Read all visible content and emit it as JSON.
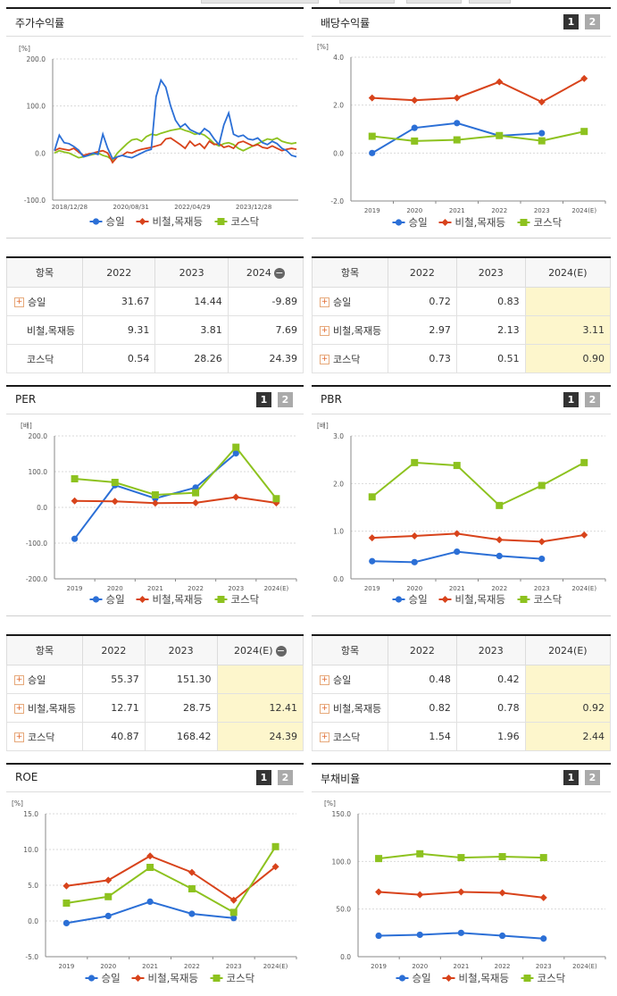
{
  "colors": {
    "s1": "#2b6fd6",
    "s2": "#d8431b",
    "s3": "#8dc21f"
  },
  "panels": {
    "stock": {
      "title": "주가수익률",
      "unit": "[%]"
    },
    "dividend": {
      "title": "배당수익률",
      "unit": "[%]",
      "btn1": "1",
      "btn2": "2"
    },
    "per": {
      "title": "PER",
      "unit": "[배]",
      "btn1": "1",
      "btn2": "2"
    },
    "pbr": {
      "title": "PBR",
      "unit": "[배]",
      "btn1": "1",
      "btn2": "2"
    },
    "roe": {
      "title": "ROE",
      "unit": "[%]",
      "btn1": "1",
      "btn2": "2"
    },
    "debt": {
      "title": "부채비율",
      "unit": "[%]",
      "btn1": "1",
      "btn2": "2"
    }
  },
  "legend": [
    "승일",
    "비철,목재등",
    "코스닥"
  ],
  "chart_data": [
    {
      "id": "stock",
      "type": "line",
      "ylim": [
        -100,
        200
      ],
      "yticks": [
        "200.0",
        "100.0",
        "0.0",
        "-100.0"
      ],
      "xticks": [
        "2018/12/28",
        "2020/08/31",
        "2022/04/29",
        "2023/12/28"
      ],
      "series": [
        {
          "name": "승일",
          "values": [
            5,
            38,
            22,
            20,
            14,
            6,
            -8,
            -5,
            0,
            -3,
            40,
            10,
            -12,
            -8,
            -5,
            -8,
            -10,
            -5,
            0,
            5,
            8,
            120,
            155,
            140,
            100,
            70,
            55,
            62,
            50,
            45,
            40,
            52,
            45,
            30,
            18,
            60,
            85,
            40,
            35,
            38,
            30,
            28,
            32,
            22,
            18,
            25,
            20,
            10,
            5,
            -5,
            -8
          ]
        },
        {
          "name": "비철,목재등",
          "values": [
            5,
            10,
            8,
            6,
            10,
            2,
            -5,
            -2,
            0,
            3,
            5,
            0,
            -20,
            -8,
            -5,
            2,
            0,
            5,
            8,
            10,
            12,
            15,
            18,
            30,
            32,
            25,
            18,
            10,
            25,
            15,
            20,
            10,
            25,
            18,
            20,
            12,
            15,
            10,
            22,
            25,
            20,
            15,
            18,
            12,
            10,
            15,
            10,
            5,
            8,
            10,
            8
          ]
        },
        {
          "name": "코스닥",
          "values": [
            0,
            5,
            2,
            0,
            -5,
            -10,
            -8,
            -5,
            -3,
            0,
            -5,
            -8,
            -15,
            0,
            10,
            20,
            28,
            30,
            25,
            35,
            40,
            38,
            42,
            45,
            48,
            50,
            52,
            48,
            45,
            40,
            42,
            38,
            30,
            20,
            15,
            20,
            22,
            18,
            10,
            5,
            10,
            15,
            20,
            25,
            30,
            28,
            32,
            25,
            22,
            20,
            22
          ]
        }
      ]
    },
    {
      "id": "dividend",
      "type": "line",
      "ylim": [
        -2,
        4
      ],
      "yticks": [
        "4.0",
        "2.0",
        "0.0",
        "-2.0"
      ],
      "categories": [
        "2019",
        "2020",
        "2021",
        "2022",
        "2023",
        "2024(E)"
      ],
      "series": [
        {
          "name": "승일",
          "values": [
            0.0,
            1.05,
            1.25,
            0.72,
            0.83,
            null
          ]
        },
        {
          "name": "비철,목재등",
          "values": [
            2.3,
            2.2,
            2.3,
            2.97,
            2.13,
            3.11
          ]
        },
        {
          "name": "코스닥",
          "values": [
            0.7,
            0.5,
            0.55,
            0.73,
            0.51,
            0.9
          ]
        }
      ]
    },
    {
      "id": "per",
      "type": "line",
      "ylim": [
        -200,
        200
      ],
      "yticks": [
        "200.0",
        "100.0",
        "0.0",
        "-100.0",
        "-200.0"
      ],
      "categories": [
        "2019",
        "2020",
        "2021",
        "2022",
        "2023",
        "2024(E)"
      ],
      "series": [
        {
          "name": "승일",
          "values": [
            -88,
            62,
            25,
            55.37,
            151.3,
            null
          ]
        },
        {
          "name": "비철,목재등",
          "values": [
            18,
            17,
            12,
            12.71,
            28.75,
            12.41
          ]
        },
        {
          "name": "코스닥",
          "values": [
            80,
            70,
            35,
            40.87,
            168.42,
            24.39
          ]
        }
      ]
    },
    {
      "id": "pbr",
      "type": "line",
      "ylim": [
        0,
        3
      ],
      "yticks": [
        "3.0",
        "2.0",
        "1.0",
        "0.0"
      ],
      "categories": [
        "2019",
        "2020",
        "2021",
        "2022",
        "2023",
        "2024(E)"
      ],
      "series": [
        {
          "name": "승일",
          "values": [
            0.37,
            0.35,
            0.57,
            0.48,
            0.42,
            null
          ]
        },
        {
          "name": "비철,목재등",
          "values": [
            0.86,
            0.9,
            0.95,
            0.82,
            0.78,
            0.92
          ]
        },
        {
          "name": "코스닥",
          "values": [
            1.72,
            2.44,
            2.38,
            1.54,
            1.96,
            2.44
          ]
        }
      ]
    },
    {
      "id": "roe",
      "type": "line",
      "ylim": [
        -5,
        15
      ],
      "yticks": [
        "15.0",
        "10.0",
        "5.0",
        "0.0",
        "-5.0"
      ],
      "categories": [
        "2019",
        "2020",
        "2021",
        "2022",
        "2023",
        "2024(E)"
      ],
      "series": [
        {
          "name": "승일",
          "values": [
            -0.3,
            0.7,
            2.7,
            1.0,
            0.4,
            null
          ]
        },
        {
          "name": "비철,목재등",
          "values": [
            4.9,
            5.7,
            9.1,
            6.8,
            2.9,
            7.6
          ]
        },
        {
          "name": "코스닥",
          "values": [
            2.5,
            3.4,
            7.5,
            4.5,
            1.2,
            10.4
          ]
        }
      ]
    },
    {
      "id": "debt",
      "type": "line",
      "ylim": [
        0,
        150
      ],
      "yticks": [
        "150.0",
        "100.0",
        "50.0",
        "0.0"
      ],
      "categories": [
        "2019",
        "2020",
        "2021",
        "2022",
        "2023",
        "2024(E)"
      ],
      "series": [
        {
          "name": "승일",
          "values": [
            22,
            23,
            25,
            22,
            19,
            null
          ]
        },
        {
          "name": "비철,목재등",
          "values": [
            68,
            65,
            68,
            67,
            62,
            null
          ]
        },
        {
          "name": "코스닥",
          "values": [
            103,
            108,
            104,
            105,
            104,
            null
          ]
        }
      ]
    }
  ],
  "tables": {
    "stock": {
      "headers": [
        "항목",
        "2022",
        "2023",
        "2024"
      ],
      "rows": [
        {
          "label": "승일",
          "values": [
            "31.67",
            "14.44",
            "-9.89"
          ]
        },
        {
          "label": "비철,목재등",
          "values": [
            "9.31",
            "3.81",
            "7.69"
          ]
        },
        {
          "label": "코스닥",
          "values": [
            "0.54",
            "28.26",
            "24.39"
          ]
        }
      ]
    },
    "dividend": {
      "headers": [
        "항목",
        "2022",
        "2023",
        "2024(E)"
      ],
      "rows": [
        {
          "label": "승일",
          "values": [
            "0.72",
            "0.83",
            ""
          ]
        },
        {
          "label": "비철,목재등",
          "values": [
            "2.97",
            "2.13",
            "3.11"
          ]
        },
        {
          "label": "코스닥",
          "values": [
            "0.73",
            "0.51",
            "0.90"
          ]
        }
      ]
    },
    "per": {
      "headers": [
        "항목",
        "2022",
        "2023",
        "2024(E)"
      ],
      "rows": [
        {
          "label": "승일",
          "values": [
            "55.37",
            "151.30",
            ""
          ]
        },
        {
          "label": "비철,목재등",
          "values": [
            "12.71",
            "28.75",
            "12.41"
          ]
        },
        {
          "label": "코스닥",
          "values": [
            "40.87",
            "168.42",
            "24.39"
          ]
        }
      ]
    },
    "pbr": {
      "headers": [
        "항목",
        "2022",
        "2023",
        "2024(E)"
      ],
      "rows": [
        {
          "label": "승일",
          "values": [
            "0.48",
            "0.42",
            ""
          ]
        },
        {
          "label": "비철,목재등",
          "values": [
            "0.82",
            "0.78",
            "0.92"
          ]
        },
        {
          "label": "코스닥",
          "values": [
            "1.54",
            "1.96",
            "2.44"
          ]
        }
      ]
    }
  }
}
